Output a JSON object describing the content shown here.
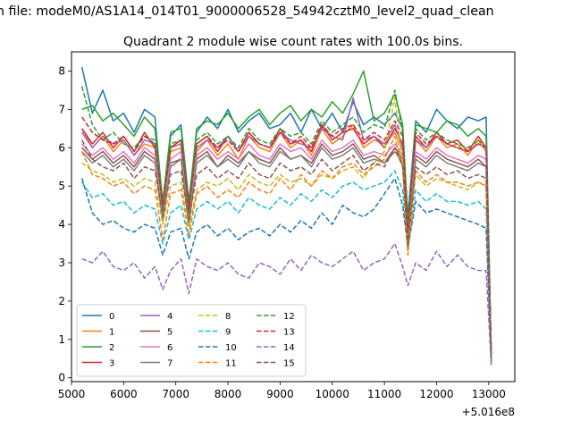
{
  "figure": {
    "suptitle": "n file: modeM0/AS1A14_014T01_9000006528_54942cztM0_level2_quad_clean"
  },
  "chart_data": {
    "type": "line",
    "title": "Quadrant 2 module wise count rates with 100.0s bins.",
    "xlabel": "",
    "ylabel": "",
    "x_offset_label": "+5.016e8",
    "xlim": [
      5000,
      13500
    ],
    "ylim": [
      -0.1,
      8.5
    ],
    "xticks": [
      5000,
      6000,
      7000,
      8000,
      9000,
      10000,
      11000,
      12000,
      13000
    ],
    "yticks": [
      0,
      1,
      2,
      3,
      4,
      5,
      6,
      7,
      8
    ],
    "x": [
      5200,
      5400,
      5600,
      5800,
      6000,
      6200,
      6400,
      6600,
      6750,
      6900,
      7100,
      7250,
      7400,
      7600,
      7800,
      8000,
      8200,
      8400,
      8600,
      8800,
      9000,
      9200,
      9400,
      9600,
      9800,
      10000,
      10200,
      10400,
      10600,
      10800,
      11000,
      11200,
      11350,
      11450,
      11600,
      11800,
      12000,
      12200,
      12400,
      12600,
      12800,
      12950,
      13050
    ],
    "series": [
      {
        "name": "0",
        "color": "#1f77b4",
        "style": "solid",
        "values": [
          8.1,
          6.9,
          7.5,
          6.7,
          6.9,
          6.4,
          7.0,
          6.8,
          4.5,
          6.3,
          6.6,
          4.6,
          6.4,
          6.8,
          6.5,
          7.0,
          6.4,
          6.7,
          6.9,
          6.5,
          6.6,
          6.9,
          6.4,
          7.0,
          6.5,
          6.9,
          6.4,
          7.2,
          6.6,
          6.8,
          6.6,
          6.9,
          6.5,
          4.2,
          6.7,
          6.4,
          7.0,
          6.7,
          6.5,
          6.8,
          6.7,
          6.8,
          0.5
        ]
      },
      {
        "name": "1",
        "color": "#ff7f0e",
        "style": "solid",
        "values": [
          6.5,
          6.0,
          6.3,
          5.9,
          6.2,
          5.8,
          6.1,
          6.0,
          4.1,
          5.9,
          6.0,
          4.0,
          5.9,
          6.2,
          5.8,
          6.1,
          5.7,
          6.3,
          6.0,
          5.9,
          6.4,
          6.0,
          6.2,
          5.8,
          6.5,
          6.1,
          6.3,
          6.6,
          6.0,
          6.2,
          6.1,
          6.4,
          5.9,
          3.5,
          6.2,
          5.9,
          6.3,
          6.0,
          6.1,
          5.8,
          6.2,
          5.9,
          0.6
        ]
      },
      {
        "name": "2",
        "color": "#2ca02c",
        "style": "solid",
        "values": [
          7.0,
          7.1,
          6.7,
          6.9,
          6.6,
          6.3,
          6.8,
          6.5,
          4.6,
          6.4,
          6.5,
          4.5,
          6.5,
          6.7,
          6.6,
          6.9,
          6.5,
          6.8,
          7.0,
          6.6,
          6.9,
          7.1,
          6.7,
          7.0,
          6.8,
          7.2,
          6.9,
          7.4,
          8.0,
          6.7,
          6.9,
          7.4,
          6.6,
          4.0,
          6.6,
          6.5,
          6.4,
          6.7,
          6.6,
          6.3,
          6.5,
          6.3,
          0.5
        ]
      },
      {
        "name": "3",
        "color": "#d62728",
        "style": "solid",
        "values": [
          6.5,
          6.1,
          6.4,
          6.0,
          6.3,
          5.9,
          6.4,
          6.0,
          4.3,
          6.0,
          6.2,
          4.4,
          6.1,
          6.3,
          5.9,
          6.3,
          5.9,
          6.4,
          6.1,
          6.0,
          6.5,
          6.1,
          6.2,
          5.9,
          6.6,
          6.2,
          6.4,
          6.5,
          6.1,
          6.3,
          6.0,
          6.5,
          6.1,
          3.7,
          6.3,
          6.0,
          6.4,
          6.1,
          6.2,
          5.9,
          6.3,
          6.0,
          0.6
        ]
      },
      {
        "name": "4",
        "color": "#9467bd",
        "style": "solid",
        "values": [
          6.4,
          6.0,
          6.3,
          6.1,
          6.2,
          5.8,
          6.2,
          6.1,
          4.3,
          6.0,
          6.1,
          4.2,
          6.0,
          6.2,
          6.0,
          6.3,
          5.9,
          6.3,
          6.1,
          6.0,
          6.4,
          6.2,
          6.1,
          6.0,
          6.5,
          6.3,
          6.2,
          7.3,
          6.2,
          6.3,
          6.1,
          6.6,
          6.0,
          3.8,
          6.2,
          6.0,
          6.3,
          6.1,
          6.0,
          5.9,
          6.1,
          6.0,
          0.5
        ]
      },
      {
        "name": "5",
        "color": "#8c564b",
        "style": "solid",
        "values": [
          6.0,
          5.7,
          5.9,
          5.6,
          5.8,
          5.5,
          5.9,
          5.7,
          4.2,
          5.6,
          5.7,
          4.1,
          5.7,
          5.9,
          5.5,
          5.8,
          5.6,
          5.9,
          5.7,
          5.6,
          6.0,
          5.7,
          5.8,
          5.6,
          6.1,
          5.8,
          5.9,
          6.1,
          5.7,
          5.8,
          5.6,
          6.0,
          5.7,
          3.6,
          5.8,
          5.6,
          5.9,
          5.7,
          5.6,
          5.5,
          5.7,
          5.5,
          0.5
        ]
      },
      {
        "name": "6",
        "color": "#e377c2",
        "style": "solid",
        "values": [
          6.1,
          5.8,
          6.0,
          5.7,
          5.9,
          5.6,
          6.0,
          5.8,
          4.2,
          5.7,
          5.9,
          4.2,
          5.8,
          6.0,
          5.7,
          5.9,
          5.7,
          6.1,
          5.8,
          5.7,
          6.1,
          5.9,
          6.0,
          5.7,
          6.2,
          5.9,
          6.0,
          6.2,
          5.8,
          5.9,
          5.8,
          6.1,
          5.8,
          3.7,
          5.9,
          5.7,
          6.0,
          5.8,
          5.7,
          5.6,
          5.8,
          5.7,
          0.5
        ]
      },
      {
        "name": "7",
        "color": "#7f7f7f",
        "style": "solid",
        "values": [
          5.9,
          5.6,
          5.8,
          5.5,
          5.7,
          5.4,
          5.8,
          5.6,
          4.1,
          5.5,
          5.7,
          4.0,
          5.6,
          5.8,
          5.5,
          5.7,
          5.5,
          5.9,
          5.6,
          5.5,
          5.9,
          5.7,
          5.8,
          5.5,
          6.0,
          5.7,
          5.8,
          6.0,
          5.6,
          5.7,
          5.6,
          5.9,
          5.6,
          3.5,
          5.7,
          5.5,
          5.8,
          5.6,
          5.5,
          5.4,
          5.6,
          5.5,
          0.5
        ]
      },
      {
        "name": "8",
        "color": "#bcbd22",
        "style": "dashed",
        "values": [
          5.6,
          5.4,
          5.3,
          5.1,
          5.2,
          5.0,
          5.2,
          5.1,
          4.0,
          5.0,
          5.1,
          3.9,
          4.9,
          5.1,
          5.0,
          5.2,
          4.9,
          5.3,
          5.1,
          5.0,
          5.3,
          5.1,
          5.2,
          5.0,
          5.3,
          5.2,
          5.4,
          5.5,
          5.2,
          5.6,
          5.9,
          7.3,
          5.5,
          3.7,
          5.3,
          5.0,
          5.2,
          5.1,
          5.0,
          4.9,
          5.1,
          5.0,
          0.5
        ]
      },
      {
        "name": "9",
        "color": "#17becf",
        "style": "dashed",
        "values": [
          5.1,
          4.7,
          4.8,
          4.5,
          4.6,
          4.3,
          4.5,
          4.4,
          3.5,
          4.3,
          4.5,
          3.6,
          4.4,
          4.6,
          4.4,
          4.6,
          4.3,
          4.7,
          4.5,
          4.4,
          4.7,
          4.5,
          4.8,
          4.6,
          4.9,
          4.7,
          5.0,
          5.1,
          4.9,
          5.0,
          5.1,
          5.4,
          4.9,
          3.3,
          4.9,
          4.6,
          4.8,
          4.6,
          4.6,
          4.5,
          4.6,
          4.4,
          0.4
        ]
      },
      {
        "name": "10",
        "color": "#1f77b4",
        "style": "dashed",
        "values": [
          5.2,
          4.3,
          4.0,
          4.1,
          3.9,
          3.8,
          4.0,
          3.9,
          3.2,
          3.8,
          3.9,
          3.1,
          3.8,
          4.0,
          3.7,
          3.9,
          3.6,
          3.8,
          3.9,
          3.7,
          4.0,
          3.8,
          4.1,
          3.9,
          4.3,
          4.0,
          4.5,
          4.3,
          4.2,
          4.4,
          4.8,
          5.2,
          4.5,
          3.4,
          4.6,
          4.3,
          4.4,
          4.3,
          4.2,
          4.1,
          4.0,
          3.9,
          0.4
        ]
      },
      {
        "name": "11",
        "color": "#ff7f0e",
        "style": "dashed",
        "values": [
          5.9,
          5.3,
          5.2,
          5.0,
          5.1,
          4.8,
          5.0,
          4.9,
          3.6,
          4.8,
          4.9,
          3.7,
          4.8,
          5.0,
          4.7,
          4.9,
          4.7,
          5.1,
          4.9,
          4.8,
          5.2,
          4.9,
          5.3,
          5.0,
          5.4,
          5.2,
          5.5,
          5.6,
          5.3,
          5.5,
          5.7,
          6.3,
          5.5,
          3.2,
          5.4,
          5.1,
          5.3,
          5.1,
          5.1,
          5.0,
          5.1,
          5.0,
          0.5
        ]
      },
      {
        "name": "12",
        "color": "#2ca02c",
        "style": "dashed",
        "values": [
          7.6,
          6.6,
          6.2,
          6.4,
          6.1,
          6.0,
          6.3,
          6.2,
          4.4,
          6.1,
          6.2,
          4.3,
          6.2,
          6.4,
          6.1,
          6.3,
          6.0,
          6.5,
          6.2,
          6.1,
          6.5,
          6.3,
          6.4,
          6.1,
          6.7,
          6.4,
          6.6,
          6.8,
          6.4,
          6.6,
          6.5,
          7.5,
          6.4,
          3.9,
          6.5,
          6.2,
          6.4,
          6.2,
          6.1,
          6.0,
          6.2,
          6.0,
          0.5
        ]
      },
      {
        "name": "13",
        "color": "#d62728",
        "style": "dashed",
        "values": [
          6.8,
          6.4,
          6.2,
          6.1,
          6.3,
          5.9,
          6.3,
          6.1,
          4.5,
          6.0,
          6.2,
          4.4,
          6.1,
          6.3,
          6.0,
          6.2,
          5.9,
          6.4,
          6.1,
          6.0,
          6.4,
          6.1,
          6.3,
          6.0,
          6.6,
          6.3,
          6.5,
          6.6,
          6.2,
          6.4,
          6.2,
          6.7,
          6.3,
          3.8,
          6.4,
          6.1,
          6.3,
          6.1,
          6.0,
          5.9,
          6.1,
          6.0,
          0.5
        ]
      },
      {
        "name": "14",
        "color": "#9467bd",
        "style": "dashed",
        "values": [
          3.1,
          3.0,
          3.3,
          2.9,
          2.8,
          3.0,
          2.6,
          2.9,
          2.3,
          2.8,
          3.1,
          2.2,
          3.1,
          2.9,
          2.8,
          3.0,
          2.7,
          2.6,
          3.0,
          2.9,
          2.7,
          3.1,
          2.8,
          3.2,
          3.0,
          2.9,
          3.1,
          3.3,
          2.8,
          3.0,
          3.1,
          3.5,
          2.9,
          2.4,
          3.0,
          2.8,
          3.3,
          2.9,
          3.2,
          2.9,
          2.8,
          2.8,
          0.3
        ]
      },
      {
        "name": "15",
        "color": "#8c564b",
        "style": "dashed",
        "values": [
          6.2,
          5.7,
          5.5,
          5.4,
          5.6,
          5.2,
          5.5,
          5.4,
          4.2,
          5.3,
          5.4,
          4.1,
          5.3,
          5.5,
          5.2,
          5.4,
          5.2,
          5.6,
          5.3,
          5.2,
          5.6,
          5.4,
          5.5,
          5.3,
          5.7,
          5.4,
          5.6,
          5.8,
          5.4,
          5.6,
          5.5,
          6.0,
          5.5,
          3.5,
          5.5,
          5.3,
          5.5,
          5.3,
          5.4,
          5.2,
          5.3,
          5.2,
          0.5
        ]
      }
    ],
    "legend": {
      "placement": "lower-left",
      "columns": 4
    },
    "grid": false
  }
}
